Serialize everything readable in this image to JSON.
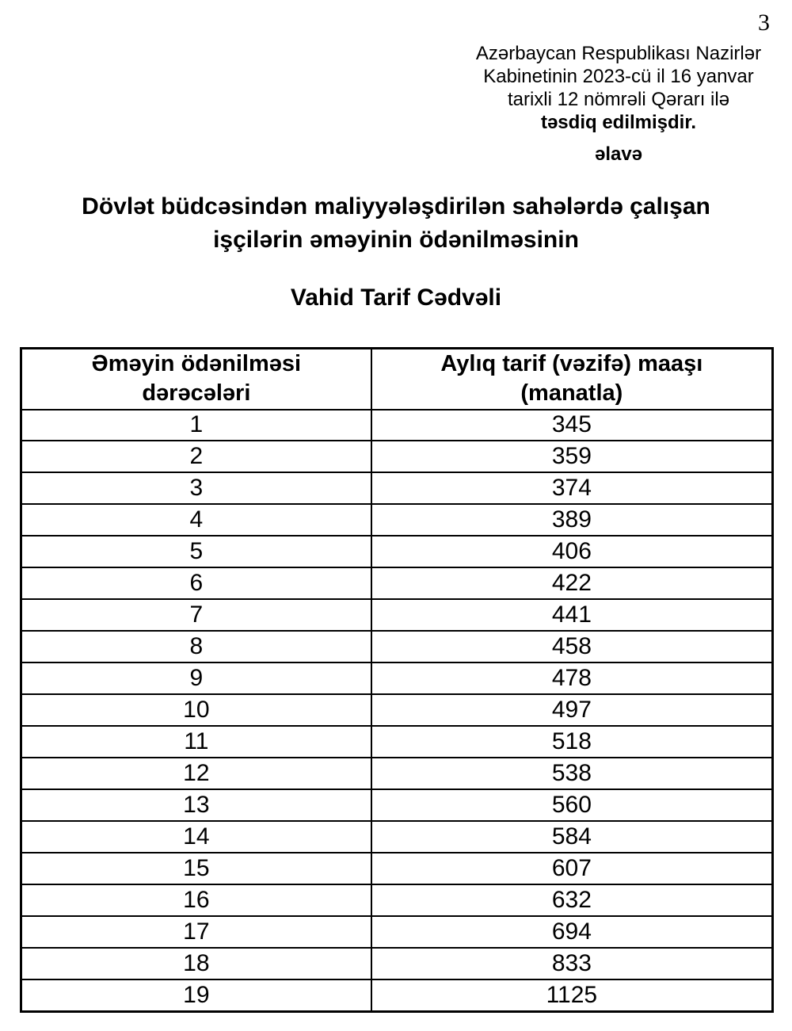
{
  "page": {
    "number": "3"
  },
  "approval": {
    "lines": [
      "Azərbaycan Respublikası Nazirlər",
      "Kabinetinin 2023-cü il 16 yanvar",
      "tarixli 12 nömrəli Qərarı ilə"
    ],
    "line_bold": "təsdiq edilmişdir.",
    "annex": "əlavə"
  },
  "title": {
    "lines": [
      "Dövlət büdcəsindən maliyyələşdirilən sahələrdə çalışan",
      "işçilərin əməyinin ödənilməsinin"
    ],
    "sub": "Vahid Tarif Cədvəli"
  },
  "table": {
    "headers": [
      {
        "line1": "Əməyin ödənilməsi",
        "line2": "dərəcələri"
      },
      {
        "line1": "Aylıq tarif (vəzifə) maaşı",
        "line2": "(manatla)"
      }
    ],
    "rows": [
      {
        "grade": "1",
        "salary": "345"
      },
      {
        "grade": "2",
        "salary": "359"
      },
      {
        "grade": "3",
        "salary": "374"
      },
      {
        "grade": "4",
        "salary": "389"
      },
      {
        "grade": "5",
        "salary": "406"
      },
      {
        "grade": "6",
        "salary": "422"
      },
      {
        "grade": "7",
        "salary": "441"
      },
      {
        "grade": "8",
        "salary": "458"
      },
      {
        "grade": "9",
        "salary": "478"
      },
      {
        "grade": "10",
        "salary": "497"
      },
      {
        "grade": "11",
        "salary": "518"
      },
      {
        "grade": "12",
        "salary": "538"
      },
      {
        "grade": "13",
        "salary": "560"
      },
      {
        "grade": "14",
        "salary": "584"
      },
      {
        "grade": "15",
        "salary": "607"
      },
      {
        "grade": "16",
        "salary": "632"
      },
      {
        "grade": "17",
        "salary": "694"
      },
      {
        "grade": "18",
        "salary": "833"
      },
      {
        "grade": "19",
        "salary": "1125"
      }
    ]
  },
  "colors": {
    "text": "#000000",
    "border": "#000000",
    "background": "#ffffff"
  }
}
